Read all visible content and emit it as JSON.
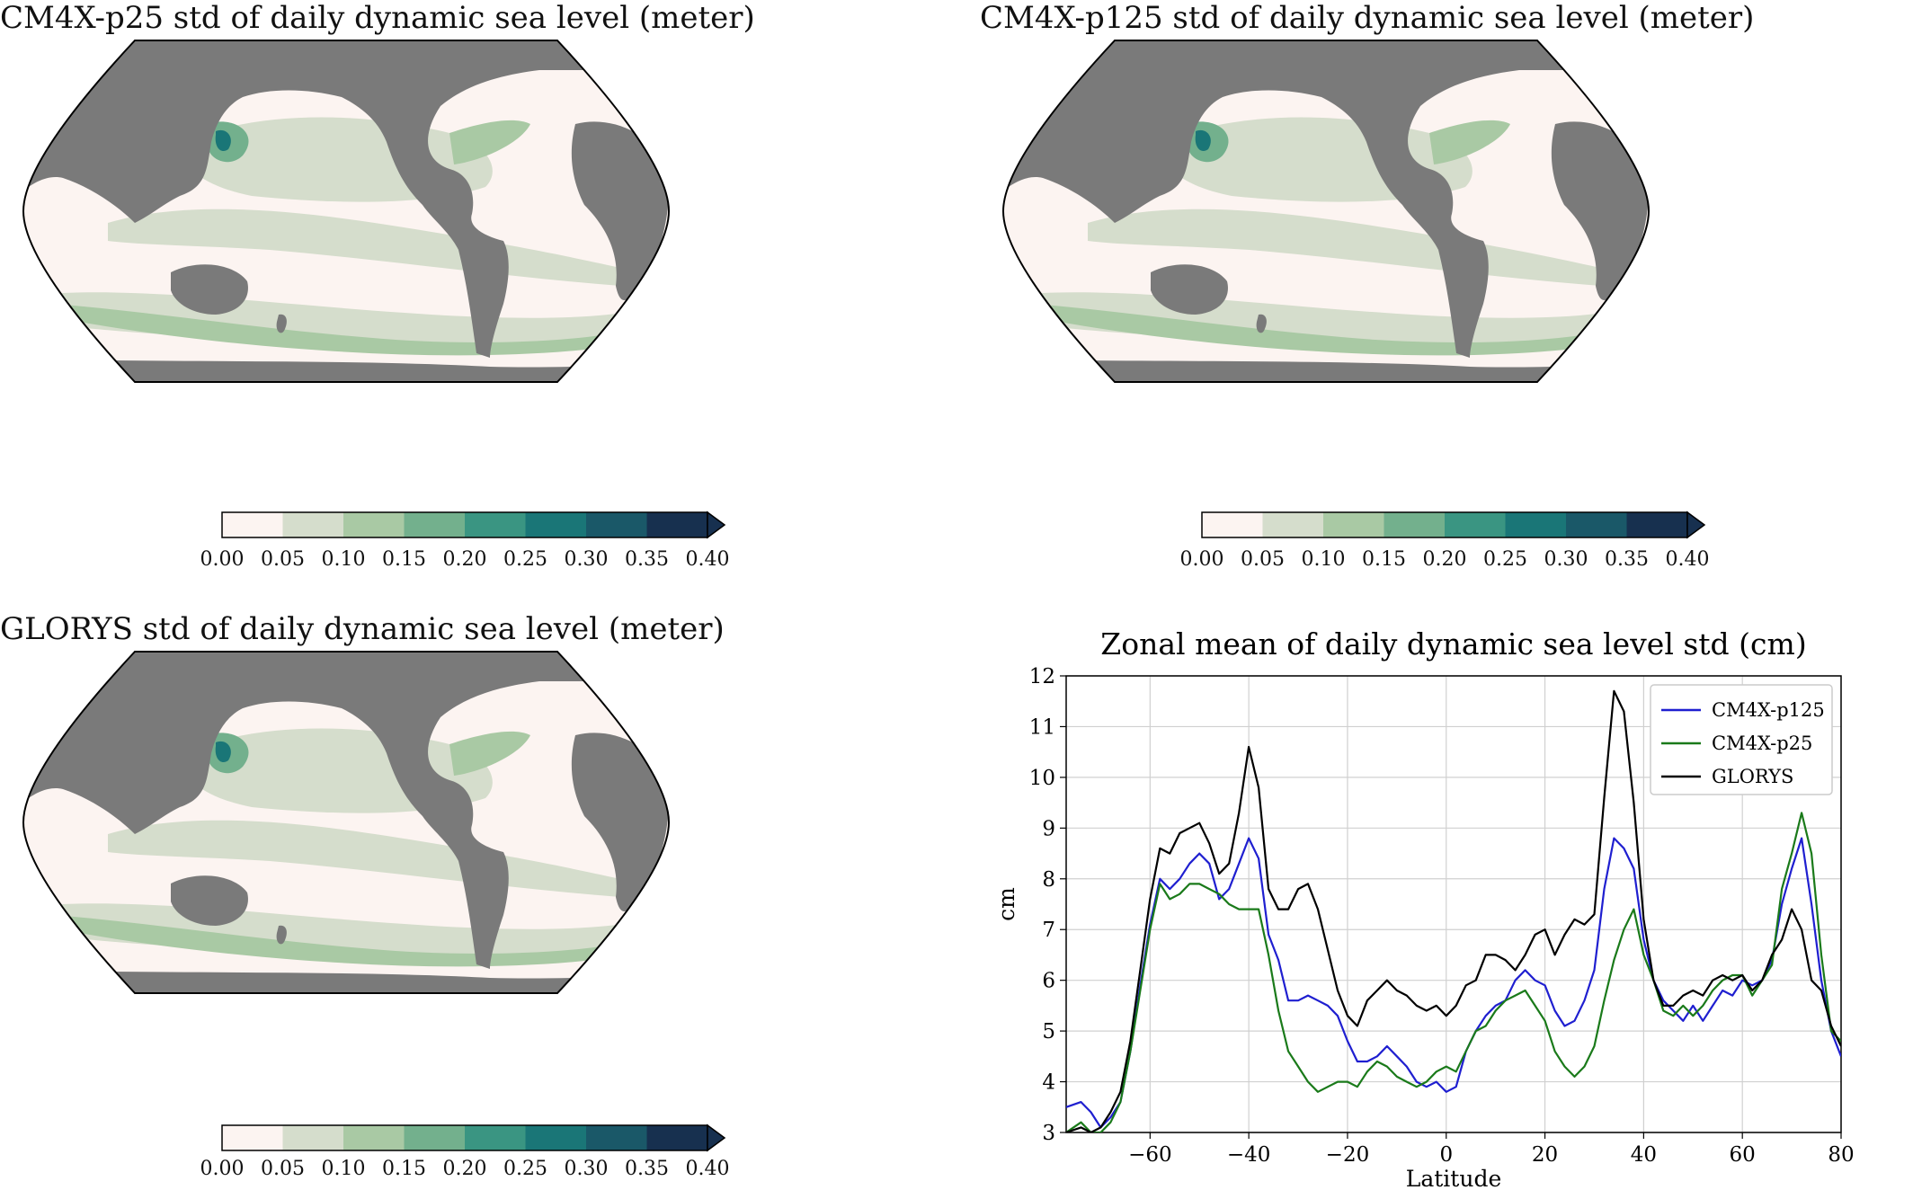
{
  "maps": [
    {
      "title": "CM4X-p25 std of daily dynamic sea level (meter)",
      "colorbar_ticks": [
        "0.00",
        "0.05",
        "0.10",
        "0.15",
        "0.20",
        "0.25",
        "0.30",
        "0.35",
        "0.40"
      ]
    },
    {
      "title": "CM4X-p125 std of daily dynamic sea level (meter)",
      "colorbar_ticks": [
        "0.00",
        "0.05",
        "0.10",
        "0.15",
        "0.20",
        "0.25",
        "0.30",
        "0.35",
        "0.40"
      ]
    },
    {
      "title": "GLORYS std of daily dynamic sea level (meter)",
      "colorbar_ticks": [
        "0.00",
        "0.05",
        "0.10",
        "0.15",
        "0.20",
        "0.25",
        "0.30",
        "0.35",
        "0.40"
      ]
    }
  ],
  "colorbar_colors": [
    "#fcf4f1",
    "#d5ddcc",
    "#a9c9a4",
    "#73b08d",
    "#3a9582",
    "#1a7677",
    "#1a5868",
    "#17304f"
  ],
  "land_color": "#7a7a7a",
  "chart_data": {
    "type": "line",
    "title": "Zonal mean of daily dynamic sea level std (cm)",
    "xlabel": "Latitude",
    "ylabel": "cm",
    "xlim": [
      -77,
      80
    ],
    "ylim": [
      3,
      12
    ],
    "xticks": [
      -60,
      -40,
      -20,
      0,
      20,
      40,
      60,
      80
    ],
    "yticks": [
      3,
      4,
      5,
      6,
      7,
      8,
      9,
      10,
      11,
      12
    ],
    "grid": true,
    "legend_position": "top-right",
    "series": [
      {
        "name": "CM4X-p125",
        "color": "#1f1fd0",
        "x": [
          -77,
          -74,
          -72,
          -70,
          -68,
          -66,
          -64,
          -62,
          -60,
          -58,
          -56,
          -54,
          -52,
          -50,
          -48,
          -46,
          -44,
          -42,
          -40,
          -38,
          -36,
          -34,
          -32,
          -30,
          -28,
          -26,
          -24,
          -22,
          -20,
          -18,
          -16,
          -14,
          -12,
          -10,
          -8,
          -6,
          -4,
          -2,
          0,
          2,
          4,
          6,
          8,
          10,
          12,
          14,
          16,
          18,
          20,
          22,
          24,
          26,
          28,
          30,
          32,
          34,
          36,
          38,
          40,
          42,
          44,
          46,
          48,
          50,
          52,
          54,
          56,
          58,
          60,
          62,
          64,
          66,
          68,
          70,
          72,
          74,
          76,
          78,
          80
        ],
        "y": [
          3.5,
          3.6,
          3.4,
          3.1,
          3.3,
          3.6,
          4.6,
          5.9,
          7.1,
          8.0,
          7.8,
          8.0,
          8.3,
          8.5,
          8.3,
          7.6,
          7.8,
          8.3,
          8.8,
          8.4,
          6.9,
          6.4,
          5.6,
          5.6,
          5.7,
          5.6,
          5.5,
          5.3,
          4.8,
          4.4,
          4.4,
          4.5,
          4.7,
          4.5,
          4.3,
          4.0,
          3.9,
          4.0,
          3.8,
          3.9,
          4.6,
          5.0,
          5.3,
          5.5,
          5.6,
          6.0,
          6.2,
          6.0,
          5.9,
          5.4,
          5.1,
          5.2,
          5.6,
          6.2,
          7.8,
          8.8,
          8.6,
          8.2,
          6.8,
          6.0,
          5.6,
          5.4,
          5.2,
          5.5,
          5.2,
          5.5,
          5.8,
          5.7,
          6.0,
          5.9,
          6.0,
          6.4,
          7.5,
          8.2,
          8.8,
          7.5,
          6.0,
          5.0,
          4.5
        ]
      },
      {
        "name": "CM4X-p25",
        "color": "#1a7a1a",
        "x": [
          -77,
          -74,
          -72,
          -70,
          -68,
          -66,
          -64,
          -62,
          -60,
          -58,
          -56,
          -54,
          -52,
          -50,
          -48,
          -46,
          -44,
          -42,
          -40,
          -38,
          -36,
          -34,
          -32,
          -30,
          -28,
          -26,
          -24,
          -22,
          -20,
          -18,
          -16,
          -14,
          -12,
          -10,
          -8,
          -6,
          -4,
          -2,
          0,
          2,
          4,
          6,
          8,
          10,
          12,
          14,
          16,
          18,
          20,
          22,
          24,
          26,
          28,
          30,
          32,
          34,
          36,
          38,
          40,
          42,
          44,
          46,
          48,
          50,
          52,
          54,
          56,
          58,
          60,
          62,
          64,
          66,
          68,
          70,
          72,
          74,
          76,
          78,
          80
        ],
        "y": [
          3.0,
          3.2,
          3.0,
          3.0,
          3.2,
          3.6,
          4.6,
          5.8,
          7.0,
          7.9,
          7.6,
          7.7,
          7.9,
          7.9,
          7.8,
          7.7,
          7.5,
          7.4,
          7.4,
          7.4,
          6.5,
          5.4,
          4.6,
          4.3,
          4.0,
          3.8,
          3.9,
          4.0,
          4.0,
          3.9,
          4.2,
          4.4,
          4.3,
          4.1,
          4.0,
          3.9,
          4.0,
          4.2,
          4.3,
          4.2,
          4.6,
          5.0,
          5.1,
          5.4,
          5.6,
          5.7,
          5.8,
          5.5,
          5.2,
          4.6,
          4.3,
          4.1,
          4.3,
          4.7,
          5.6,
          6.4,
          7.0,
          7.4,
          6.5,
          6.0,
          5.4,
          5.3,
          5.5,
          5.3,
          5.5,
          5.8,
          6.0,
          6.1,
          6.1,
          5.7,
          6.0,
          6.3,
          7.8,
          8.5,
          9.3,
          8.5,
          6.5,
          5.0,
          4.8
        ]
      },
      {
        "name": "GLORYS",
        "color": "#000000",
        "x": [
          -77,
          -74,
          -72,
          -70,
          -68,
          -66,
          -64,
          -62,
          -60,
          -58,
          -56,
          -54,
          -52,
          -50,
          -48,
          -46,
          -44,
          -42,
          -40,
          -38,
          -36,
          -34,
          -32,
          -30,
          -28,
          -26,
          -24,
          -22,
          -20,
          -18,
          -16,
          -14,
          -12,
          -10,
          -8,
          -6,
          -4,
          -2,
          0,
          2,
          4,
          6,
          8,
          10,
          12,
          14,
          16,
          18,
          20,
          22,
          24,
          26,
          28,
          30,
          32,
          34,
          36,
          38,
          40,
          42,
          44,
          46,
          48,
          50,
          52,
          54,
          56,
          58,
          60,
          62,
          64,
          66,
          68,
          70,
          72,
          74,
          76,
          78,
          80
        ],
        "y": [
          3.0,
          3.1,
          3.0,
          3.1,
          3.4,
          3.8,
          4.8,
          6.2,
          7.6,
          8.6,
          8.5,
          8.9,
          9.0,
          9.1,
          8.7,
          8.1,
          8.3,
          9.3,
          10.6,
          9.8,
          7.8,
          7.4,
          7.4,
          7.8,
          7.9,
          7.4,
          6.6,
          5.8,
          5.3,
          5.1,
          5.6,
          5.8,
          6.0,
          5.8,
          5.7,
          5.5,
          5.4,
          5.5,
          5.3,
          5.5,
          5.9,
          6.0,
          6.5,
          6.5,
          6.4,
          6.2,
          6.5,
          6.9,
          7.0,
          6.5,
          6.9,
          7.2,
          7.1,
          7.3,
          9.6,
          11.7,
          11.3,
          9.5,
          7.2,
          6.0,
          5.5,
          5.5,
          5.7,
          5.8,
          5.7,
          6.0,
          6.1,
          6.0,
          6.1,
          5.8,
          6.0,
          6.5,
          6.8,
          7.4,
          7.0,
          6.0,
          5.8,
          5.1,
          4.7
        ]
      }
    ]
  }
}
